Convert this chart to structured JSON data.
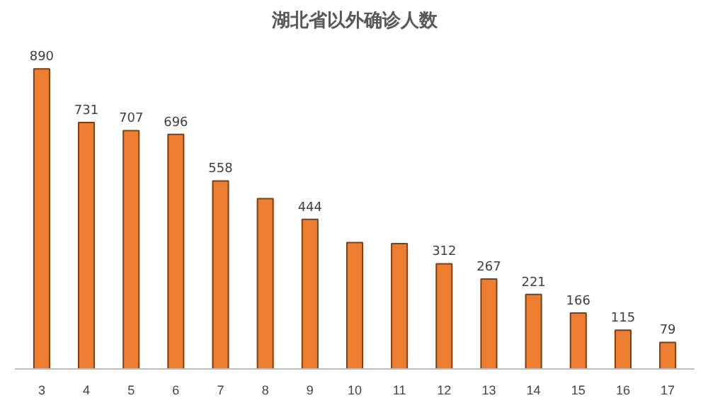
{
  "chart_data": {
    "type": "bar",
    "title": "湖北省以外确诊人数",
    "categories": [
      "3",
      "4",
      "5",
      "6",
      "7",
      "8",
      "9",
      "10",
      "11",
      "12",
      "13",
      "14",
      "15",
      "16",
      "17"
    ],
    "values": [
      890,
      731,
      707,
      696,
      558,
      505,
      444,
      375,
      372,
      312,
      267,
      221,
      166,
      115,
      79
    ],
    "value_labels": [
      "890",
      "731",
      "707",
      "696",
      "558",
      null,
      "444",
      null,
      null,
      "312",
      "267",
      "221",
      "166",
      "115",
      "79"
    ],
    "color": "#ed7d31"
  }
}
